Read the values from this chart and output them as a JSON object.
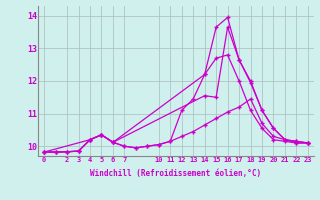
{
  "xlabel": "Windchill (Refroidissement éolien,°C)",
  "bg_color": "#cff0ec",
  "grid_color": "#aabbbb",
  "line_color": "#cc00cc",
  "ylim": [
    9.7,
    14.3
  ],
  "xlim": [
    -0.5,
    23.5
  ],
  "yticks": [
    10,
    11,
    12,
    13,
    14
  ],
  "xticks": [
    0,
    2,
    3,
    4,
    5,
    6,
    7,
    10,
    11,
    12,
    13,
    14,
    15,
    16,
    17,
    18,
    19,
    20,
    21,
    22,
    23
  ],
  "series": [
    {
      "x": [
        0,
        1,
        2,
        3,
        4,
        5,
        6,
        7,
        8,
        9,
        10,
        11,
        12,
        13,
        14,
        15,
        16,
        17,
        18,
        19,
        20,
        21,
        22,
        23
      ],
      "y": [
        9.82,
        9.82,
        9.83,
        9.85,
        10.2,
        10.35,
        10.12,
        10.0,
        9.95,
        10.0,
        10.05,
        10.15,
        11.1,
        11.45,
        12.2,
        12.7,
        12.8,
        12.0,
        11.1,
        10.55,
        10.2,
        10.15,
        10.1,
        10.1
      ]
    },
    {
      "x": [
        0,
        1,
        2,
        3,
        4,
        5,
        6,
        14,
        15,
        16,
        17,
        18,
        19,
        20,
        21,
        22,
        23
      ],
      "y": [
        9.82,
        9.82,
        9.83,
        9.85,
        10.2,
        10.35,
        10.12,
        12.2,
        13.65,
        13.95,
        12.65,
        12.0,
        11.1,
        10.55,
        10.2,
        10.15,
        10.1
      ]
    },
    {
      "x": [
        0,
        1,
        2,
        3,
        4,
        5,
        6,
        7,
        8,
        9,
        10,
        11,
        12,
        13,
        14,
        15,
        16,
        17,
        18,
        19,
        20,
        21,
        22,
        23
      ],
      "y": [
        9.82,
        9.82,
        9.83,
        9.85,
        10.2,
        10.35,
        10.12,
        10.0,
        9.95,
        10.0,
        10.05,
        10.15,
        10.3,
        10.45,
        10.65,
        10.85,
        11.05,
        11.2,
        11.45,
        10.7,
        10.3,
        10.2,
        10.1,
        10.1
      ]
    },
    {
      "x": [
        0,
        4,
        5,
        6,
        14,
        15,
        16,
        17,
        18,
        19,
        20,
        21,
        22,
        23
      ],
      "y": [
        9.82,
        10.2,
        10.35,
        10.12,
        11.55,
        11.5,
        13.65,
        12.65,
        11.95,
        11.1,
        10.55,
        10.2,
        10.15,
        10.1
      ]
    }
  ],
  "marker": "+"
}
